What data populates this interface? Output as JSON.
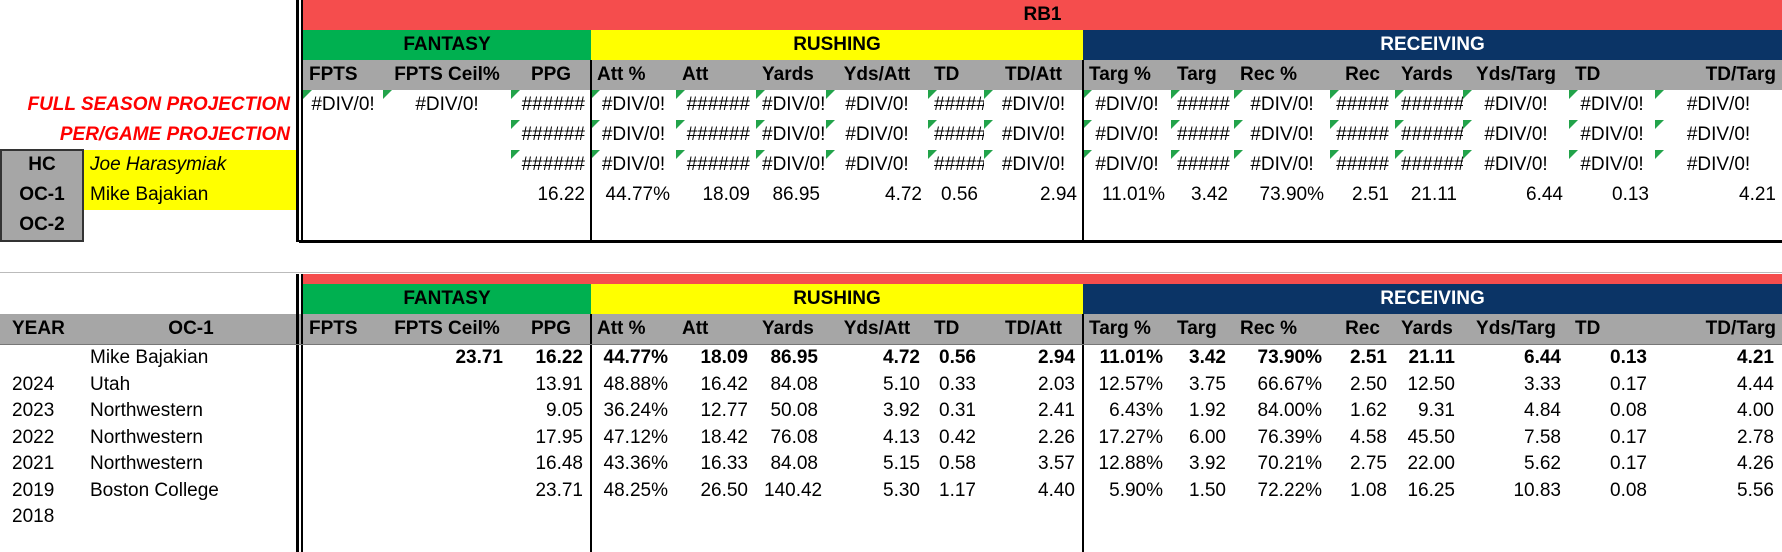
{
  "top": {
    "position": "RB1",
    "sections": {
      "fantasy": "FANTASY",
      "rushing": "RUSHING",
      "receiving": "RECEIVING"
    },
    "columns": [
      "FPTS",
      "FPTS Ceil%",
      "PPG",
      "Att %",
      "Att",
      "Yards",
      "Yds/Att",
      "TD",
      "TD/Att",
      "Targ %",
      "Targ",
      "Rec %",
      "Rec",
      "Yards",
      "Yds/Targ",
      "TD",
      "TD/Targ"
    ],
    "full_season_label": "FULL SEASON PROJECTION",
    "per_game_label": "PER/GAME PROJECTION",
    "coaches": [
      {
        "role": "HC",
        "name": "Joe Harasymiak"
      },
      {
        "role": "OC-1",
        "name": "Mike Bajakian"
      },
      {
        "role": "OC-2",
        "name": ""
      }
    ],
    "rows": [
      [
        "#DIV/0!",
        "#DIV/0!",
        "######",
        "#DIV/0!",
        "######",
        "#DIV/0!",
        "#DIV/0!",
        "#####",
        "#DIV/0!",
        "#DIV/0!",
        "#####",
        "#DIV/0!",
        "#####",
        "######",
        "#DIV/0!",
        "#DIV/0!",
        "#DIV/0!"
      ],
      [
        "",
        "",
        "######",
        "#DIV/0!",
        "######",
        "#DIV/0!",
        "#DIV/0!",
        "#####",
        "#DIV/0!",
        "#DIV/0!",
        "#####",
        "#DIV/0!",
        "#####",
        "######",
        "#DIV/0!",
        "#DIV/0!",
        "#DIV/0!"
      ],
      [
        "",
        "",
        "######",
        "#DIV/0!",
        "######",
        "#DIV/0!",
        "#DIV/0!",
        "#####",
        "#DIV/0!",
        "#DIV/0!",
        "#####",
        "#DIV/0!",
        "#####",
        "######",
        "#DIV/0!",
        "#DIV/0!",
        "#DIV/0!"
      ],
      [
        "",
        "",
        "16.22",
        "44.77%",
        "18.09",
        "86.95",
        "4.72",
        "0.56",
        "2.94",
        "11.01%",
        "3.42",
        "73.90%",
        "2.51",
        "21.11",
        "6.44",
        "0.13",
        "4.21"
      ]
    ]
  },
  "bottom": {
    "sections": {
      "fantasy": "FANTASY",
      "rushing": "RUSHING",
      "receiving": "RECEIVING"
    },
    "year_header": "YEAR",
    "oc_header": "OC-1",
    "columns": [
      "FPTS",
      "FPTS Ceil%",
      "PPG",
      "Att %",
      "Att",
      "Yards",
      "Yds/Att",
      "TD",
      "TD/Att",
      "Targ %",
      "Targ",
      "Rec %",
      "Rec",
      "Yards",
      "Yds/Targ",
      "TD",
      "TD/Targ"
    ],
    "rows": [
      {
        "year": "",
        "team": "Mike Bajakian",
        "values": [
          "",
          "23.71",
          "16.22",
          "44.77%",
          "18.09",
          "86.95",
          "4.72",
          "0.56",
          "2.94",
          "11.01%",
          "3.42",
          "73.90%",
          "2.51",
          "21.11",
          "6.44",
          "0.13",
          "4.21"
        ]
      },
      {
        "year": "2024",
        "team": "Utah",
        "values": [
          "",
          "",
          "13.91",
          "48.88%",
          "16.42",
          "84.08",
          "5.10",
          "0.33",
          "2.03",
          "12.57%",
          "3.75",
          "66.67%",
          "2.50",
          "12.50",
          "3.33",
          "0.17",
          "4.44"
        ]
      },
      {
        "year": "2023",
        "team": "Northwestern",
        "values": [
          "",
          "",
          "9.05",
          "36.24%",
          "12.77",
          "50.08",
          "3.92",
          "0.31",
          "2.41",
          "6.43%",
          "1.92",
          "84.00%",
          "1.62",
          "9.31",
          "4.84",
          "0.08",
          "4.00"
        ]
      },
      {
        "year": "2022",
        "team": "Northwestern",
        "values": [
          "",
          "",
          "17.95",
          "47.12%",
          "18.42",
          "76.08",
          "4.13",
          "0.42",
          "2.26",
          "17.27%",
          "6.00",
          "76.39%",
          "4.58",
          "45.50",
          "7.58",
          "0.17",
          "2.78"
        ]
      },
      {
        "year": "2021",
        "team": "Northwestern",
        "values": [
          "",
          "",
          "16.48",
          "43.36%",
          "16.33",
          "84.08",
          "5.15",
          "0.58",
          "3.57",
          "12.88%",
          "3.92",
          "70.21%",
          "2.75",
          "22.00",
          "5.62",
          "0.17",
          "4.26"
        ]
      },
      {
        "year": "2019",
        "team": "Boston College",
        "values": [
          "",
          "",
          "23.71",
          "48.25%",
          "26.50",
          "140.42",
          "5.30",
          "1.17",
          "4.40",
          "5.90%",
          "1.50",
          "72.22%",
          "1.08",
          "16.25",
          "10.83",
          "0.08",
          "5.56"
        ]
      },
      {
        "year": "2018",
        "team": "",
        "values": [
          "",
          "",
          "",
          "",
          "",
          "",
          "",
          "",
          "",
          "",
          "",
          "",
          "",
          "",
          "",
          "",
          ""
        ]
      }
    ]
  }
}
